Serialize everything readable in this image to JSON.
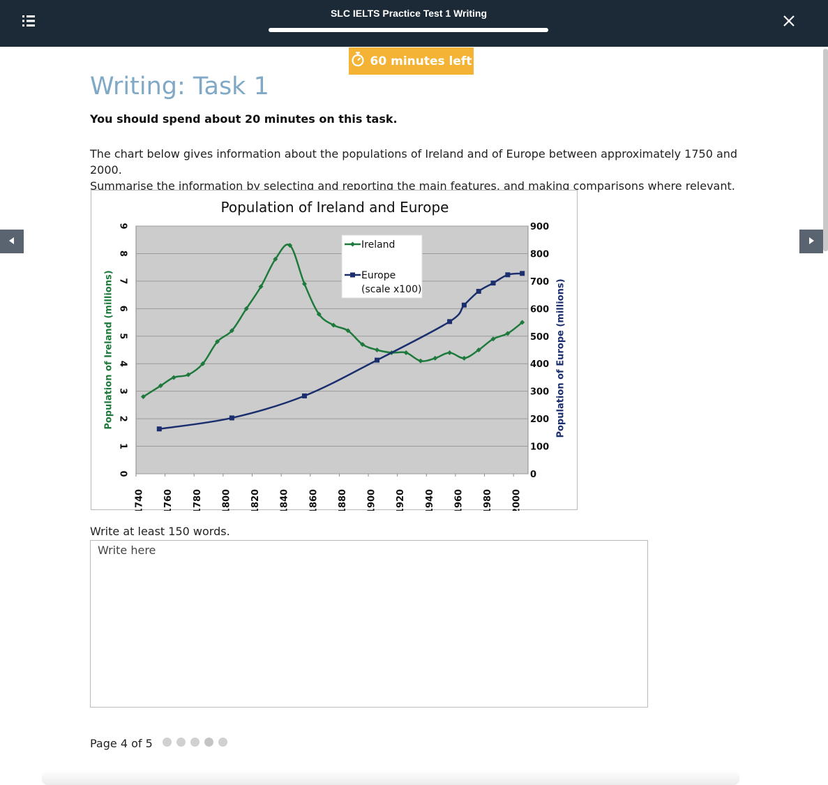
{
  "header": {
    "title": "SLC IELTS Practice Test 1 Writing",
    "progress": 1.0
  },
  "timer": {
    "label": "60 minutes left"
  },
  "task": {
    "title": "Writing: Task 1",
    "instruction": "You should spend about 20 minutes on this task.",
    "prompt_line1": "The chart below gives information about the populations of Ireland and of Europe between approximately 1750 and 2000.",
    "prompt_line2": "Summarise the information by selecting and reporting the main features, and making comparisons where relevant."
  },
  "chart_data": {
    "type": "line",
    "title": "Population of Ireland and Europe",
    "ylabel_left": "Population of Ireland (millions)",
    "ylabel_right": "Population of Europe (millions)",
    "xlim": [
      1740,
      2010
    ],
    "xticks": [
      "1740",
      "1760",
      "1780",
      "1800",
      "1820",
      "1840",
      "1860",
      "1880",
      "1900",
      "1920",
      "1940",
      "1960",
      "1980",
      "2000"
    ],
    "ylim_left": [
      0,
      9
    ],
    "yticks_left": [
      "0",
      "1",
      "2",
      "3",
      "4",
      "5",
      "6",
      "7",
      "8",
      "9"
    ],
    "ylim_right": [
      0,
      900
    ],
    "yticks_right": [
      "0",
      "100",
      "200",
      "300",
      "400",
      "500",
      "600",
      "700",
      "800",
      "900"
    ],
    "grid": true,
    "plot_background": "#cccccc",
    "legend": {
      "placement": "top-center",
      "ireland": "Ireland",
      "europe_line1": "Europe",
      "europe_line2": "(scale x100)"
    },
    "series": [
      {
        "name": "Ireland",
        "axis": "left",
        "color": "#1e7a3c",
        "marker": "diamond",
        "x": [
          1745,
          1757,
          1766,
          1776,
          1786,
          1796,
          1806,
          1816,
          1826,
          1836,
          1846,
          1856,
          1866,
          1876,
          1886,
          1896,
          1906,
          1916,
          1926,
          1936,
          1946,
          1956,
          1966,
          1976,
          1986,
          1996,
          2006
        ],
        "y": [
          2.8,
          3.2,
          3.5,
          3.6,
          4.0,
          4.8,
          5.2,
          6.0,
          6.8,
          7.8,
          8.3,
          6.9,
          5.8,
          5.4,
          5.2,
          4.7,
          4.5,
          4.4,
          4.4,
          4.1,
          4.2,
          4.4,
          4.2,
          4.5,
          4.9,
          5.1,
          5.5
        ]
      },
      {
        "name": "Europe",
        "axis": "right",
        "color": "#1b2f6e",
        "marker": "square",
        "x": [
          1756,
          1806,
          1856,
          1906,
          1956,
          1966,
          1976,
          1986,
          1996,
          2006
        ],
        "y": [
          163,
          203,
          283,
          413,
          553,
          613,
          663,
          693,
          723,
          728
        ]
      }
    ]
  },
  "answer": {
    "label": "Write at least 150 words.",
    "placeholder": "Write here",
    "value": ""
  },
  "pager": {
    "label": "Page 4 of 5",
    "total": 5,
    "current": 4
  }
}
